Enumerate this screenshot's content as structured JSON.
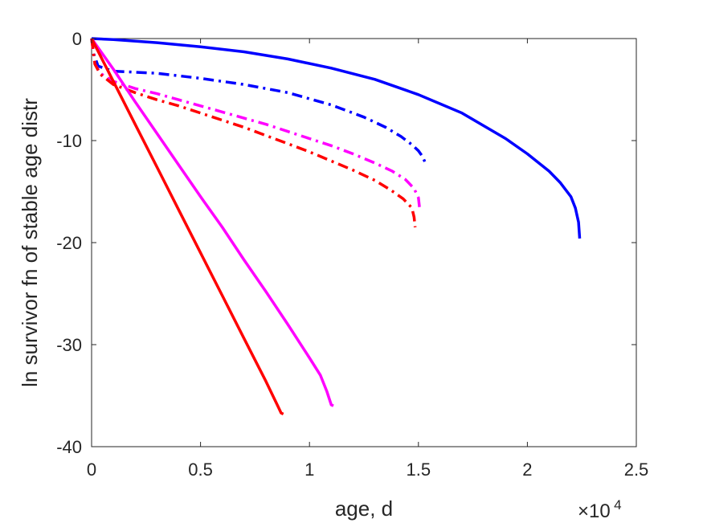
{
  "chart_data": {
    "type": "line",
    "title": "",
    "xlabel": "age, d",
    "ylabel": "ln survivor fn of stable age distr",
    "x_multiplier_label": {
      "base": "×10",
      "exponent": "4"
    },
    "xlim": [
      0,
      25000
    ],
    "ylim": [
      -40,
      0
    ],
    "x_ticks": [
      0,
      5000,
      10000,
      15000,
      20000,
      25000
    ],
    "x_tick_labels": [
      "0",
      "0.5",
      "1",
      "1.5",
      "2",
      "2.5"
    ],
    "y_ticks": [
      0,
      -10,
      -20,
      -30,
      -40
    ],
    "y_tick_labels": [
      "0",
      "-10",
      "-20",
      "-30",
      "-40"
    ],
    "grid": false,
    "legend": "none",
    "series": [
      {
        "color": "#0000ff",
        "dash": "solid",
        "x": [
          0,
          1000,
          3000,
          5000,
          7000,
          9000,
          11000,
          13000,
          15000,
          17000,
          19000,
          20000,
          21000,
          21500,
          22000,
          22200,
          22350,
          22400
        ],
        "y": [
          0,
          -0.1,
          -0.4,
          -0.8,
          -1.3,
          -2.0,
          -2.9,
          -4.0,
          -5.5,
          -7.3,
          -9.8,
          -11.3,
          -13.0,
          -14.1,
          -15.5,
          -16.6,
          -18.0,
          -19.6
        ]
      },
      {
        "color": "#0000ff",
        "dash": "dashdot",
        "x": [
          0,
          100,
          300,
          1000,
          3000,
          5000,
          7000,
          9000,
          11000,
          12500,
          13500,
          14200,
          14700,
          15000,
          15200,
          15300,
          15350
        ],
        "y": [
          0,
          -1.5,
          -2.7,
          -3.2,
          -3.4,
          -3.9,
          -4.5,
          -5.3,
          -6.5,
          -7.7,
          -8.7,
          -9.6,
          -10.4,
          -11.0,
          -11.6,
          -12.1,
          -12.4
        ]
      },
      {
        "color": "#ff00ff",
        "dash": "dashdot",
        "x": [
          0,
          150,
          400,
          1000,
          2000,
          3000,
          4000,
          5000,
          6000,
          7000,
          8000,
          9000,
          10000,
          11000,
          12000,
          13000,
          13800,
          14400,
          14800,
          15000,
          15050
        ],
        "y": [
          0,
          -2.5,
          -3.4,
          -4.2,
          -4.9,
          -5.4,
          -6.0,
          -6.6,
          -7.2,
          -7.8,
          -8.4,
          -9.1,
          -9.8,
          -10.5,
          -11.3,
          -12.2,
          -13.0,
          -13.8,
          -14.7,
          -15.6,
          -16.6
        ]
      },
      {
        "color": "#ff0000",
        "dash": "dashdot",
        "x": [
          0,
          150,
          400,
          1000,
          2000,
          3000,
          4000,
          5000,
          6000,
          7000,
          8000,
          9000,
          10000,
          11000,
          12000,
          13000,
          13700,
          14300,
          14700,
          14800,
          14850
        ],
        "y": [
          0,
          -2.5,
          -3.5,
          -4.5,
          -5.3,
          -6.0,
          -6.6,
          -7.3,
          -8.0,
          -8.7,
          -9.5,
          -10.3,
          -11.1,
          -12.0,
          -12.9,
          -13.9,
          -14.8,
          -15.7,
          -16.6,
          -17.5,
          -18.5
        ]
      },
      {
        "color": "#ff00ff",
        "dash": "solid",
        "x": [
          0,
          1000,
          2000,
          3000,
          4000,
          5000,
          6000,
          7000,
          8000,
          9000,
          10000,
          10500,
          10800,
          11000,
          11100
        ],
        "y": [
          0,
          -3.0,
          -6.2,
          -9.3,
          -12.4,
          -15.5,
          -18.5,
          -21.7,
          -24.8,
          -28.0,
          -31.3,
          -33.0,
          -34.6,
          -35.9,
          -36.0
        ]
      },
      {
        "color": "#ff0000",
        "dash": "solid",
        "x": [
          0,
          1000,
          2000,
          3000,
          4000,
          5000,
          6000,
          7000,
          8000,
          8500,
          8700,
          8800
        ],
        "y": [
          0,
          -4.2,
          -8.4,
          -12.6,
          -16.8,
          -21.0,
          -25.2,
          -29.4,
          -33.6,
          -35.8,
          -36.7,
          -36.8
        ]
      }
    ]
  }
}
